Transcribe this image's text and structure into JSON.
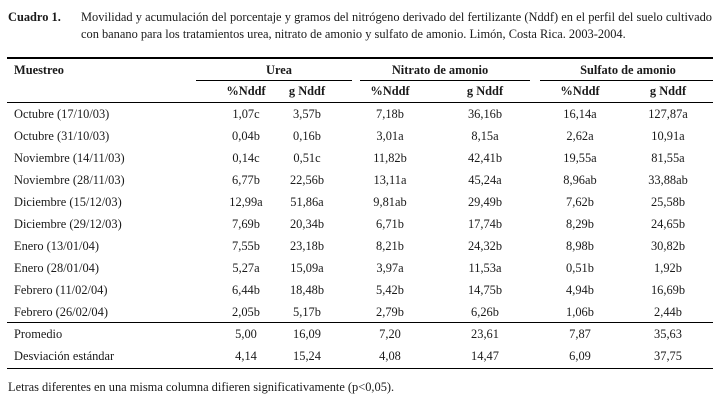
{
  "caption": {
    "label": "Cuadro 1.",
    "text": "Movilidad y acumulación del porcentaje y gramos del nitrógeno derivado del fertilizante (Nddf) en el perfil del suelo cultivado con banano para los tratamientos urea, nitrato de amonio y sulfato de amonio. Limón, Costa Rica. 2003-2004."
  },
  "table": {
    "row_header": "Muestreo",
    "groups": [
      "Urea",
      "Nitrato de amonio",
      "Sulfato de amonio"
    ],
    "subheaders": [
      "%Nddf",
      "g Nddf",
      "%Nddf",
      "g Nddf",
      "%Nddf",
      "g Nddf"
    ],
    "rows": [
      {
        "label": "Octubre (17/10/03)",
        "values": [
          "1,07c",
          "3,57b",
          "7,18b",
          "36,16b",
          "16,14a",
          "127,87a"
        ]
      },
      {
        "label": "Octubre (31/10/03)",
        "values": [
          "0,04b",
          "0,16b",
          "3,01a",
          "8,15a",
          "2,62a",
          "10,91a"
        ]
      },
      {
        "label": "Noviembre (14/11/03)",
        "values": [
          "0,14c",
          "0,51c",
          "11,82b",
          "42,41b",
          "19,55a",
          "81,55a"
        ]
      },
      {
        "label": "Noviembre (28/11/03)",
        "values": [
          "6,77b",
          "22,56b",
          "13,11a",
          "45,24a",
          "8,96ab",
          "33,88ab"
        ]
      },
      {
        "label": "Diciembre (15/12/03)",
        "values": [
          "12,99a",
          "51,86a",
          "9,81ab",
          "29,49b",
          "7,62b",
          "25,58b"
        ]
      },
      {
        "label": "Diciembre (29/12/03)",
        "values": [
          "7,69b",
          "20,34b",
          "6,71b",
          "17,74b",
          "8,29b",
          "24,65b"
        ]
      },
      {
        "label": "Enero (13/01/04)",
        "values": [
          "7,55b",
          "23,18b",
          "8,21b",
          "24,32b",
          "8,98b",
          "30,82b"
        ]
      },
      {
        "label": "Enero (28/01/04)",
        "values": [
          "5,27a",
          "15,09a",
          "3,97a",
          "11,53a",
          "0,51b",
          "1,92b"
        ]
      },
      {
        "label": "Febrero (11/02/04)",
        "values": [
          "6,44b",
          "18,48b",
          "5,42b",
          "14,75b",
          "4,94b",
          "16,69b"
        ]
      },
      {
        "label": "Febrero (26/02/04)",
        "values": [
          "2,05b",
          "5,17b",
          "2,79b",
          "6,26b",
          "1,06b",
          "2,44b"
        ]
      }
    ],
    "summary": [
      {
        "label": "Promedio",
        "values": [
          "5,00",
          "16,09",
          "7,20",
          "23,61",
          "7,87",
          "35,63"
        ]
      },
      {
        "label": "Desviación estándar",
        "values": [
          "4,14",
          "15,24",
          "4,08",
          "14,47",
          "6,09",
          "37,75"
        ]
      }
    ]
  },
  "footnote": "Letras diferentes en una misma columna difieren significativamente (p<0,05)."
}
